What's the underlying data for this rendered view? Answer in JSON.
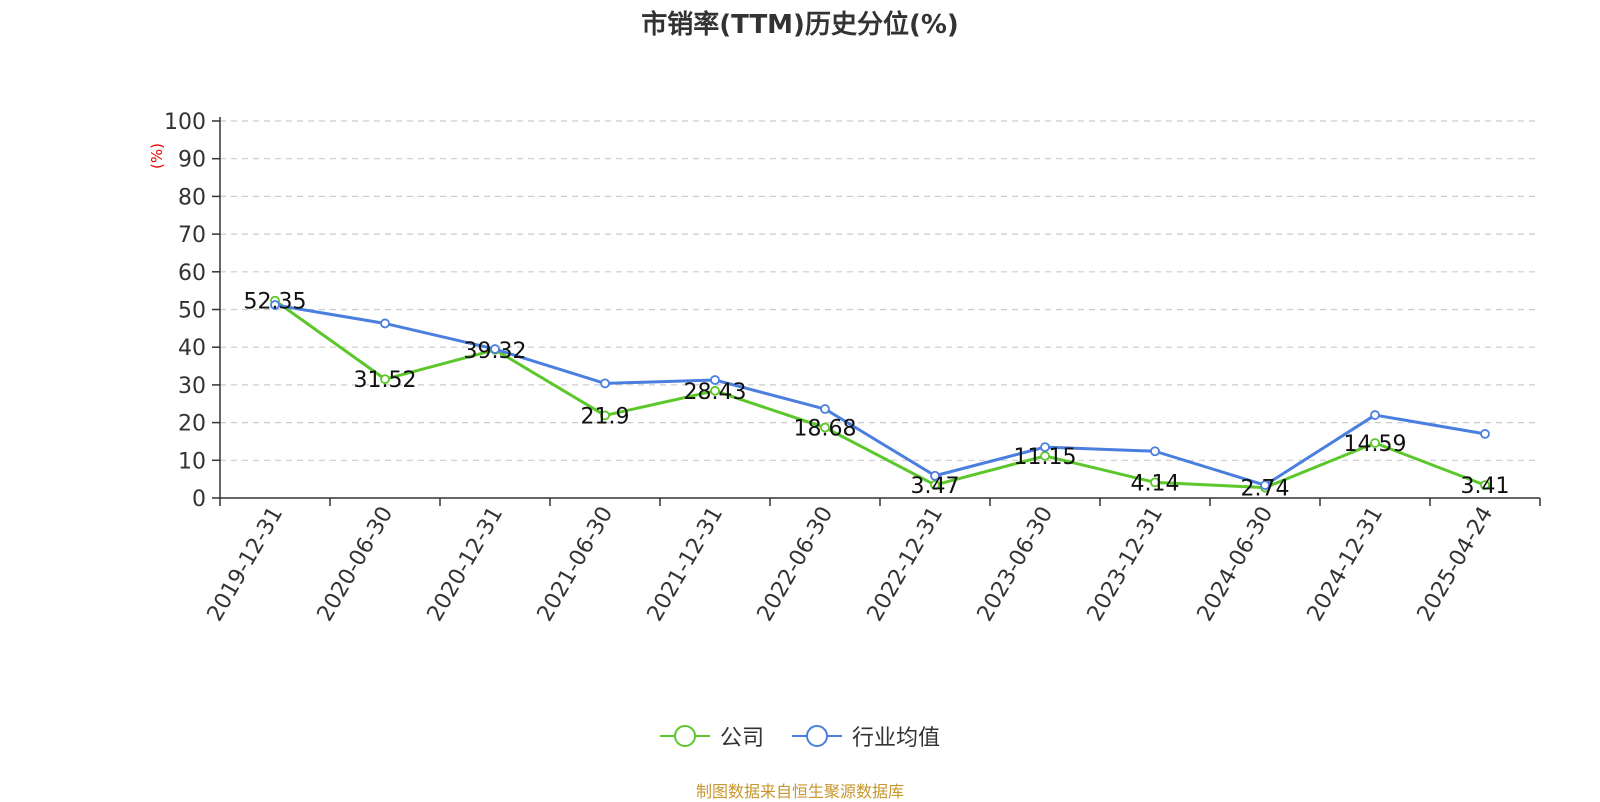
{
  "chart_data": {
    "type": "line",
    "title": "市销率(TTM)历史分位(%)",
    "ylabel": "(%)",
    "ylim": [
      0,
      100
    ],
    "yticks": [
      0,
      10,
      20,
      30,
      40,
      50,
      60,
      70,
      80,
      90,
      100
    ],
    "categories": [
      "2019-12-31",
      "2020-06-30",
      "2020-12-31",
      "2021-06-30",
      "2021-12-31",
      "2022-06-30",
      "2022-12-31",
      "2023-06-30",
      "2023-12-31",
      "2024-06-30",
      "2024-12-31",
      "2025-04-24"
    ],
    "series": [
      {
        "name": "公司",
        "color": "#5cc72a",
        "values": [
          52.35,
          31.52,
          39.32,
          21.9,
          28.43,
          18.68,
          3.47,
          11.15,
          4.14,
          2.74,
          14.59,
          3.41
        ],
        "labels": [
          "52.35",
          "31.52",
          "39.32",
          "21.9",
          "28.43",
          "18.68",
          "3.47",
          "11.15",
          "4.14",
          "2.74",
          "14.59",
          "3.41"
        ]
      },
      {
        "name": "行业均值",
        "color": "#4a7fdf",
        "values": [
          51.2,
          46.3,
          39.5,
          30.4,
          31.3,
          23.6,
          5.9,
          13.5,
          12.4,
          3.4,
          22.0,
          17.0
        ]
      }
    ],
    "grid": "dashed horizontal",
    "legend_position": "bottom-center",
    "axis_color": "#333333",
    "ylabel_color": "#e60000"
  },
  "source": {
    "text": "制图数据来自恒生聚源数据库",
    "color": "#c8962e"
  }
}
